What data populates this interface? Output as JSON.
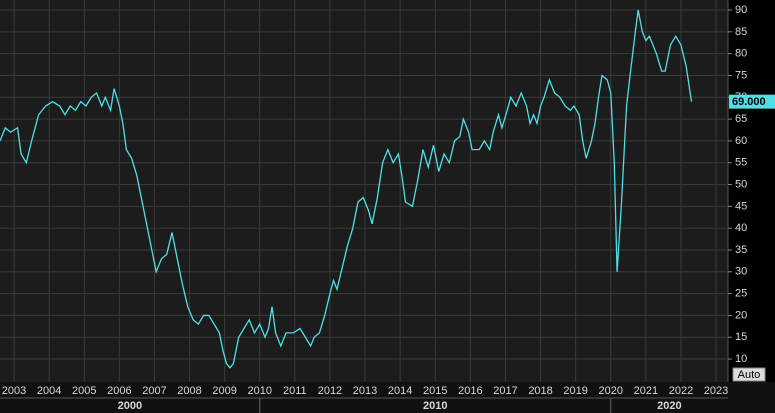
{
  "chart_data": {
    "type": "line",
    "x": [
      2002.6,
      2002.75,
      2002.9,
      2003.1,
      2003.2,
      2003.35,
      2003.5,
      2003.7,
      2003.9,
      2004.1,
      2004.3,
      2004.45,
      2004.6,
      2004.75,
      2004.9,
      2005.05,
      2005.2,
      2005.35,
      2005.5,
      2005.6,
      2005.75,
      2005.85,
      2006.0,
      2006.1,
      2006.2,
      2006.35,
      2006.5,
      2006.65,
      2006.8,
      2006.95,
      2007.05,
      2007.2,
      2007.35,
      2007.5,
      2007.65,
      2007.8,
      2007.95,
      2008.1,
      2008.25,
      2008.4,
      2008.55,
      2008.7,
      2008.85,
      2008.95,
      2009.05,
      2009.15,
      2009.25,
      2009.4,
      2009.55,
      2009.7,
      2009.85,
      2010.0,
      2010.15,
      2010.25,
      2010.35,
      2010.45,
      2010.6,
      2010.75,
      2010.95,
      2011.15,
      2011.3,
      2011.45,
      2011.55,
      2011.7,
      2011.85,
      2012.0,
      2012.1,
      2012.2,
      2012.35,
      2012.5,
      2012.65,
      2012.8,
      2012.95,
      2013.1,
      2013.2,
      2013.35,
      2013.5,
      2013.65,
      2013.8,
      2013.95,
      2014.05,
      2014.15,
      2014.35,
      2014.5,
      2014.65,
      2014.8,
      2014.95,
      2015.1,
      2015.25,
      2015.4,
      2015.55,
      2015.7,
      2015.8,
      2015.95,
      2016.05,
      2016.25,
      2016.4,
      2016.55,
      2016.65,
      2016.8,
      2016.9,
      2017.05,
      2017.15,
      2017.3,
      2017.45,
      2017.6,
      2017.7,
      2017.8,
      2017.9,
      2018.0,
      2018.1,
      2018.25,
      2018.4,
      2018.55,
      2018.7,
      2018.85,
      2018.95,
      2019.1,
      2019.2,
      2019.3,
      2019.45,
      2019.55,
      2019.65,
      2019.75,
      2019.9,
      2020.0,
      2020.1,
      2020.18,
      2020.3,
      2020.45,
      2020.55,
      2020.7,
      2020.78,
      2020.9,
      2021.0,
      2021.1,
      2021.2,
      2021.3,
      2021.45,
      2021.55,
      2021.7,
      2021.85,
      2022.0,
      2022.15,
      2022.3
    ],
    "series": [
      {
        "color": "#4fdfe6",
        "values": [
          60,
          63,
          62,
          63,
          57,
          55,
          60,
          66,
          68,
          69,
          68,
          66,
          68,
          67,
          69,
          68,
          70,
          71,
          68,
          70,
          67,
          72,
          68,
          64,
          58,
          56,
          52,
          46,
          40,
          34,
          30,
          33,
          34,
          39,
          33,
          27,
          22,
          19,
          18,
          20,
          20,
          18,
          16,
          12,
          9,
          8,
          9,
          15,
          17,
          19,
          16,
          18,
          15,
          17,
          22,
          16,
          13,
          16,
          16,
          17,
          15,
          13,
          15,
          16,
          20,
          25,
          28,
          26,
          31,
          36,
          40,
          46,
          47,
          44,
          41,
          47,
          55,
          58,
          55,
          57,
          52,
          46,
          45,
          51,
          58,
          54,
          59,
          53,
          57,
          55,
          60,
          61,
          65,
          62,
          58,
          58,
          60,
          58,
          62,
          66,
          63,
          67,
          70,
          68,
          71,
          68,
          64,
          66,
          64,
          68,
          70,
          74,
          71,
          70,
          68,
          67,
          68,
          66,
          60,
          56,
          60,
          64,
          70,
          75,
          74,
          71,
          55,
          30,
          45,
          68,
          75,
          85,
          90,
          85,
          83,
          84,
          82,
          80,
          76,
          76,
          82,
          84,
          82,
          77,
          69
        ]
      }
    ],
    "last_value_label": "69.000",
    "xlim": [
      2002.6,
      2023.34
    ],
    "xticks": [
      2003,
      2004,
      2005,
      2006,
      2007,
      2008,
      2009,
      2010,
      2011,
      2012,
      2013,
      2014,
      2015,
      2016,
      2017,
      2018,
      2019,
      2020,
      2021,
      2022,
      2023
    ],
    "x_group_labels": [
      2000,
      2010,
      2020
    ],
    "ylim": [
      5.2,
      92.3
    ],
    "yticks": [
      10,
      15,
      20,
      25,
      30,
      35,
      40,
      45,
      50,
      55,
      60,
      65,
      70,
      75,
      80,
      85,
      90
    ],
    "grid": true,
    "autoscale_button": "Auto"
  }
}
